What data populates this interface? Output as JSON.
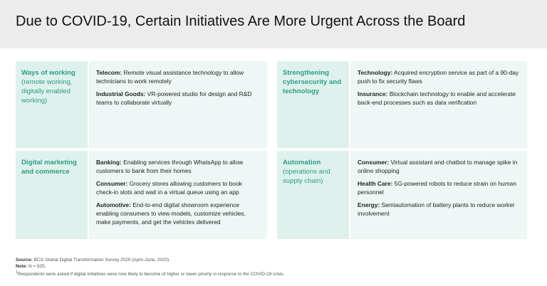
{
  "header": {
    "title": "Due to COVID-19, Certain Initiatives Are More Urgent Across the Board"
  },
  "panels": [
    {
      "label": "Ways of working",
      "label_note": "(remote working, digitally enabled working)",
      "items": [
        {
          "sector": "Telecom:",
          "text": "Remote visual assistance technology to allow technicians to work remotely"
        },
        {
          "sector": "Industrial Goods:",
          "text": "VR-powered studio for design and R&D teams to collaborate virtually"
        }
      ]
    },
    {
      "label": "Strengthening cybersecurity and technology",
      "items": [
        {
          "sector": "Technology:",
          "text": "Acquired encryption service as part of a 90-day push to fix security flaws"
        },
        {
          "sector": "Insurance:",
          "text": "Blockchain technology to enable and accelerate back-end processes such as data verification"
        }
      ]
    },
    {
      "label": "Digital marketing and commerce",
      "items": [
        {
          "sector": "Banking:",
          "text": "Enabling services through WhatsApp to allow customers to bank from their homes"
        },
        {
          "sector": "Consumer:",
          "text": "Grocery stores allowing customers to book check-in slots and wait in a virtual queue using an app"
        },
        {
          "sector": "Automotive:",
          "text": "End-to-end digital showroom experience enabling consumers to view models, customize vehicles, make payments, and get the vehicles delivered"
        }
      ]
    },
    {
      "label": "Automation",
      "label_note": "(operations and supply chain)",
      "items": [
        {
          "sector": "Consumer:",
          "text": "Virtual assistant and chatbot to manage spike in online shopping"
        },
        {
          "sector": "Health Care:",
          "text": "5G-powered robots to reduce strain on human personnel"
        },
        {
          "sector": "Energy:",
          "text": "Semiautomation of battery plants to reduce worker involvement"
        }
      ]
    }
  ],
  "footer": {
    "source_label": "Source:",
    "source": "BCG Global Digital Transformation Survey 2020 (April–June, 2020).",
    "note_label": "Note:",
    "note": "N = 825.",
    "footnote_mark": "1",
    "footnote": "Respondents were asked if digital initiatives were now likely to become of higher or lower priority in response to the COVID-19 crisis."
  }
}
